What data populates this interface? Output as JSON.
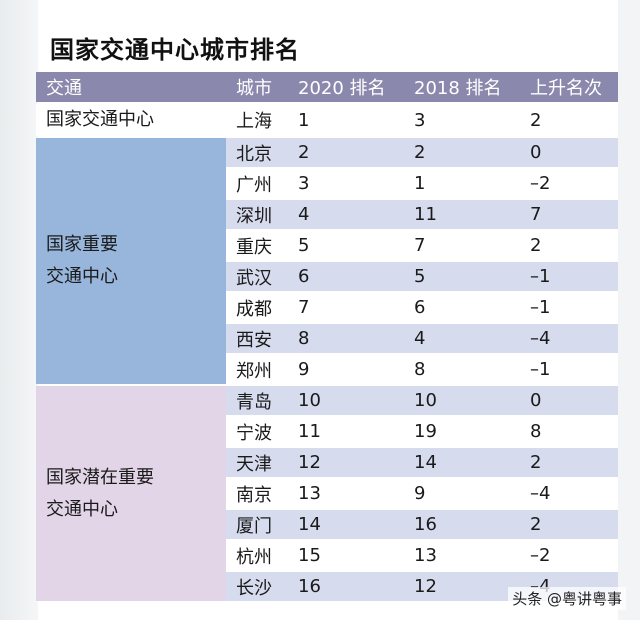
{
  "title": "国家交通中心城市排名",
  "headers": [
    "交通",
    "城市",
    "2020 排名",
    "2018 排名",
    "上升名次"
  ],
  "groups": [
    {
      "label": "国家交通中心",
      "rows": [
        [
          "上海",
          "1",
          "3",
          "2"
        ]
      ]
    },
    {
      "label": "国家重要\n交通中心",
      "rows": [
        [
          "北京",
          "2",
          "2",
          "0"
        ],
        [
          "广州",
          "3",
          "1",
          "–2"
        ],
        [
          "深圳",
          "4",
          "11",
          "7"
        ],
        [
          "重庆",
          "5",
          "7",
          "2"
        ],
        [
          "武汉",
          "6",
          "5",
          "–1"
        ],
        [
          "成都",
          "7",
          "6",
          "–1"
        ],
        [
          "西安",
          "8",
          "4",
          "–4"
        ],
        [
          "郑州",
          "9",
          "8",
          "–1"
        ]
      ]
    },
    {
      "label": "国家潜在重要\n交通中心",
      "rows": [
        [
          "青岛",
          "10",
          "10",
          "0"
        ],
        [
          "宁波",
          "11",
          "19",
          "8"
        ],
        [
          "天津",
          "12",
          "14",
          "2"
        ],
        [
          "南京",
          "13",
          "9",
          "–4"
        ],
        [
          "厦门",
          "14",
          "16",
          "2"
        ],
        [
          "杭州",
          "15",
          "13",
          "–2"
        ],
        [
          "长沙",
          "16",
          "12",
          "–4"
        ]
      ]
    }
  ],
  "watermark": "头条 @粤讲粤事",
  "colors": {
    "header_bg": "#8a88ac",
    "row_alt_bg": "#d7dbee",
    "group_blue_bg": "#98b6dc",
    "group_pink_bg": "#e2d5e7"
  }
}
